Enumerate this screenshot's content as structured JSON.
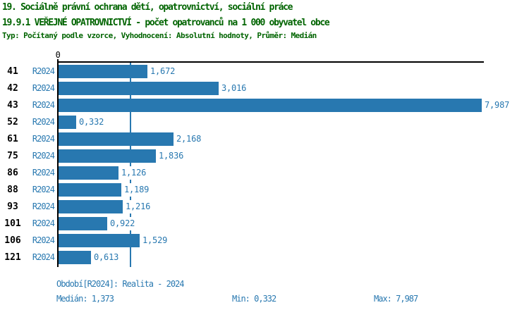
{
  "header": {
    "title_line1": "19. Sociálně právní ochrana dětí, opatrovnictví, sociální práce",
    "title_line2": "19.9.1 VEŘEJNÉ OPATROVNICTVÍ - počet opatrovanců na 1 000 obyvatel obce",
    "subtitle": "Typ: Počítaný podle vzorce, Vyhodnocení: Absolutní hodnoty, Průměr: Medián"
  },
  "chart_data": {
    "type": "bar",
    "orientation": "horizontal",
    "categories": [
      "41",
      "42",
      "43",
      "52",
      "61",
      "75",
      "86",
      "88",
      "93",
      "101",
      "106",
      "121"
    ],
    "series": [
      {
        "name": "R2024",
        "values": [
          1.672,
          3.016,
          7.987,
          0.332,
          2.168,
          1.836,
          1.126,
          1.189,
          1.216,
          0.922,
          1.529,
          0.613
        ],
        "value_labels": [
          "1,672",
          "3,016",
          "7,987",
          "0,332",
          "2,168",
          "1,836",
          "1,126",
          "1,189",
          "1,216",
          "0,922",
          "1,529",
          "0,613"
        ]
      }
    ],
    "xlabel": "",
    "ylabel": "",
    "x_axis": {
      "origin_label": "0",
      "min": 0,
      "max_data_value": 7.987
    },
    "median_reference_line": 1.373,
    "grid": false,
    "legend_position": "none"
  },
  "footer": {
    "period": "Období[R2024]: Realita - 2024",
    "median": "Medián: 1,373",
    "min": "Min: 0,332",
    "max": "Max: 7,987"
  },
  "colors": {
    "title_color": "#006400",
    "accent": "#2878b0",
    "axis_color": "#000000",
    "background": "#ffffff"
  }
}
